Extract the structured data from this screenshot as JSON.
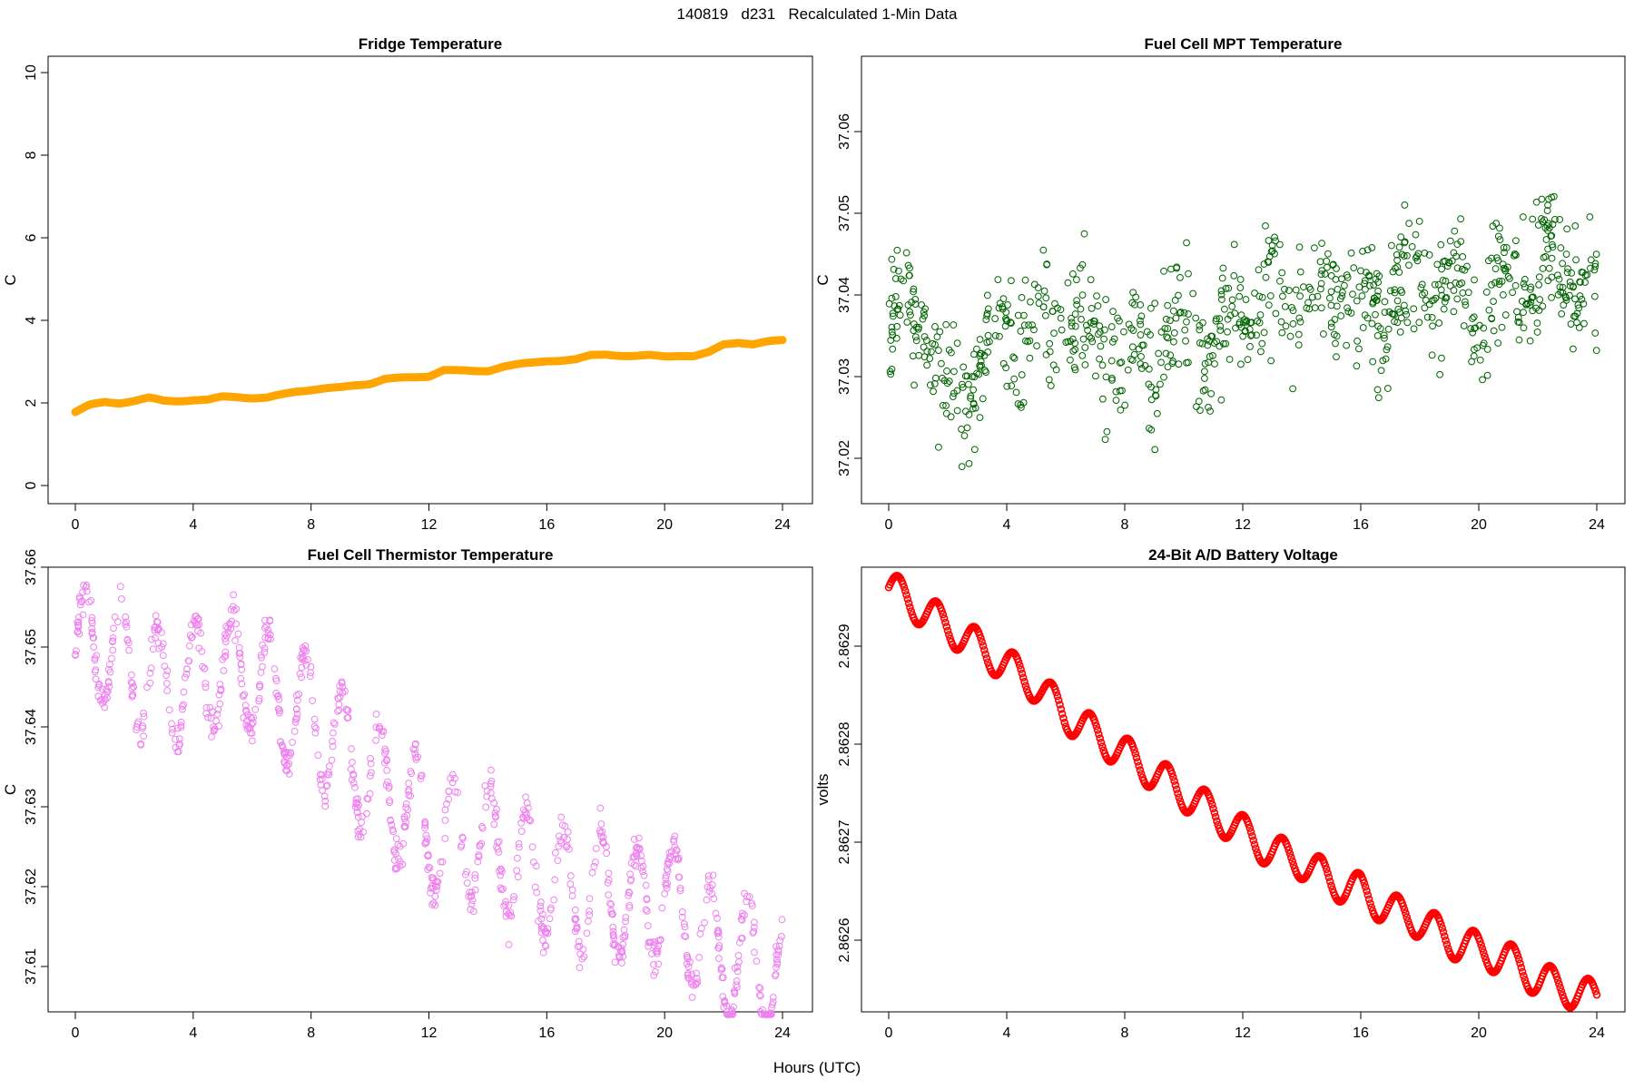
{
  "figure": {
    "title": "140819   d231   Recalculated 1-Min Data",
    "xlabel": "Hours (UTC)"
  },
  "chart_data": [
    {
      "id": "fridge",
      "type": "scatter",
      "title": "Fridge Temperature",
      "xlabel": "",
      "ylabel": "C",
      "xlim": [
        0,
        24
      ],
      "ylim": [
        0,
        10.3
      ],
      "xticks": [
        "0",
        "4",
        "8",
        "12",
        "16",
        "20",
        "24"
      ],
      "yticks": [
        "0",
        "2",
        "4",
        "6",
        "8",
        "10"
      ],
      "color": "#FFA500",
      "marker": "filled-thick",
      "series": [
        {
          "name": "Fridge Temperature",
          "x": [
            0,
            0.5,
            1,
            1.5,
            2,
            2.5,
            3,
            3.5,
            4,
            4.5,
            5,
            5.5,
            6,
            6.5,
            7,
            7.5,
            8,
            8.5,
            9,
            9.5,
            10,
            10.5,
            11,
            11.5,
            12,
            12.5,
            13,
            13.5,
            14,
            14.5,
            15,
            15.5,
            16,
            16.5,
            17,
            17.5,
            18,
            18.5,
            19,
            19.5,
            20,
            20.5,
            21,
            21.5,
            22,
            22.5,
            23,
            23.5,
            24
          ],
          "y": [
            1.78,
            1.95,
            2.02,
            2.0,
            2.05,
            2.12,
            2.05,
            2.05,
            2.07,
            2.07,
            2.15,
            2.15,
            2.12,
            2.12,
            2.2,
            2.28,
            2.32,
            2.35,
            2.37,
            2.43,
            2.47,
            2.58,
            2.6,
            2.62,
            2.65,
            2.8,
            2.78,
            2.77,
            2.78,
            2.88,
            2.93,
            2.97,
            3.02,
            3.03,
            3.05,
            3.15,
            3.18,
            3.15,
            3.13,
            3.15,
            3.13,
            3.15,
            3.13,
            3.22,
            3.42,
            3.47,
            3.42,
            3.48,
            3.52
          ]
        }
      ]
    },
    {
      "id": "mpt",
      "type": "scatter",
      "title": "Fuel Cell MPT Temperature",
      "xlabel": "",
      "ylabel": "C",
      "xlim": [
        0,
        24
      ],
      "ylim": [
        37.015,
        37.068
      ],
      "xticks": [
        "0",
        "4",
        "8",
        "12",
        "16",
        "20",
        "24"
      ],
      "yticks": [
        "37.02",
        "37.03",
        "37.04",
        "37.05",
        "37.06"
      ],
      "color": "#006400",
      "marker": "open-circle",
      "series": [
        {
          "name": "Fuel Cell MPT Temperature",
          "x": [
            0,
            1,
            2,
            3,
            4,
            5,
            6,
            7,
            8,
            9,
            10,
            11,
            12,
            13,
            14,
            15,
            16,
            17,
            18,
            19,
            20,
            21,
            22,
            23,
            24
          ],
          "y": [
            37.036,
            37.039,
            37.026,
            37.032,
            37.036,
            37.035,
            37.038,
            37.037,
            37.031,
            37.034,
            37.037,
            37.032,
            37.038,
            37.041,
            37.039,
            37.041,
            37.036,
            37.039,
            37.041,
            37.042,
            37.039,
            37.041,
            37.043,
            37.044,
            37.039
          ]
        }
      ],
      "spread_note": "points scatter approx +/-0.012 around the series trend"
    },
    {
      "id": "thermistor",
      "type": "scatter",
      "title": "Fuel Cell Thermistor Temperature",
      "xlabel": "",
      "ylabel": "C",
      "xlim": [
        0,
        24
      ],
      "ylim": [
        37.603,
        37.66
      ],
      "xticks": [
        "0",
        "4",
        "8",
        "12",
        "16",
        "20",
        "24"
      ],
      "yticks": [
        "37.61",
        "37.62",
        "37.63",
        "37.64",
        "37.65",
        "37.66"
      ],
      "color": "#EE82EE",
      "marker": "open-circle",
      "series": [
        {
          "name": "Fuel Cell Thermistor Temperature",
          "x": [
            0,
            1,
            2,
            3,
            4,
            5,
            6,
            7,
            8,
            9,
            10,
            11,
            12,
            13,
            14,
            15,
            16,
            17,
            18,
            19,
            20,
            21,
            22,
            23,
            24
          ],
          "y": [
            37.649,
            37.651,
            37.647,
            37.645,
            37.646,
            37.647,
            37.647,
            37.643,
            37.641,
            37.637,
            37.634,
            37.631,
            37.627,
            37.626,
            37.625,
            37.623,
            37.621,
            37.619,
            37.62,
            37.617,
            37.619,
            37.615,
            37.611,
            37.611,
            37.608
          ]
        }
      ],
      "spread_note": "oscillation amplitude approx 0.008 with period ~1.25 h"
    },
    {
      "id": "battery",
      "type": "line",
      "title": "24-Bit A/D Battery Voltage",
      "xlabel": "",
      "ylabel": "volts",
      "xlim": [
        0,
        24
      ],
      "ylim": [
        2.86253,
        2.86298
      ],
      "xticks": [
        "0",
        "4",
        "8",
        "12",
        "16",
        "20",
        "24"
      ],
      "yticks": [
        "2.8626",
        "2.8627",
        "2.8628",
        "2.8629"
      ],
      "color": "#FF0000",
      "marker": "filled-thick",
      "series": [
        {
          "name": "Battery Voltage",
          "x": [
            0,
            1,
            2,
            3,
            4,
            5,
            6,
            7,
            8,
            9,
            10,
            11,
            12,
            13,
            14,
            15,
            16,
            17,
            18,
            19,
            20,
            21,
            22,
            23,
            24
          ],
          "y": [
            2.86296,
            2.86294,
            2.86292,
            2.8629,
            2.86288,
            2.86286,
            2.86283,
            2.86281,
            2.86279,
            2.86277,
            2.86275,
            2.86273,
            2.86271,
            2.86269,
            2.86268,
            2.86266,
            2.86265,
            2.86263,
            2.86262,
            2.8626,
            2.86259,
            2.86258,
            2.86256,
            2.86255,
            2.86254
          ]
        }
      ],
      "spread_note": "sinusoidal ripple amplitude approx 0.00002 with period ~1.3 h"
    }
  ]
}
